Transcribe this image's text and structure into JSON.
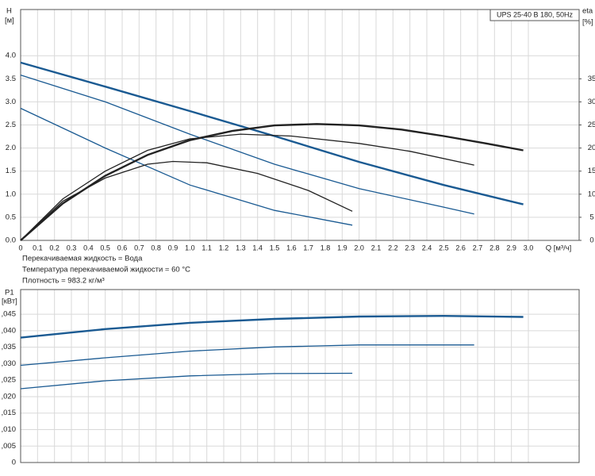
{
  "chart_data": [
    {
      "type": "line",
      "title": "UPS 25-40 B 180, 50Hz",
      "y_label": "H",
      "y_unit": "[м]",
      "y2_label": "eta",
      "y2_unit": "[%]",
      "x_label": "Q [м³/ч]",
      "annotations": [
        "Перекачиваемая жидкость = Вода",
        "Температура перекачиваемой жидкости = 60 °C",
        "Плотность = 983.2 кг/м³"
      ],
      "grid": true,
      "xlim": [
        0,
        3.3
      ],
      "xticks": [
        0,
        0.1,
        0.2,
        0.3,
        0.4,
        0.5,
        0.6,
        0.7,
        0.8,
        0.9,
        {
          "value": 1,
          "label": "1.0"
        },
        1.1,
        1.2,
        1.3,
        1.4,
        1.5,
        1.6,
        1.7,
        1.8,
        1.9,
        {
          "value": 2,
          "label": "2.0"
        },
        2.1,
        2.2,
        2.3,
        2.4,
        2.5,
        2.6,
        2.7,
        2.8,
        2.9,
        {
          "value": 3,
          "label": "3.0"
        }
      ],
      "ylim": [
        0,
        5
      ],
      "yticks": [
        {
          "value": 0,
          "label": "0.0"
        },
        0.5,
        {
          "value": 1,
          "label": "1.0"
        },
        1.5,
        {
          "value": 2,
          "label": "2.0"
        },
        2.5,
        {
          "value": 3,
          "label": "3.0"
        },
        3.5,
        {
          "value": 4,
          "label": "4.0"
        }
      ],
      "y2lim": [
        0,
        50
      ],
      "y2ticks": [
        0,
        5,
        10,
        15,
        20,
        25,
        30,
        35
      ],
      "series": [
        {
          "color": "#1a5a92",
          "axis": "y",
          "x": [
            0,
            0.5,
            1.0,
            1.5,
            2.0,
            2.5,
            2.97
          ],
          "values": [
            3.85,
            3.33,
            2.8,
            2.26,
            1.7,
            1.2,
            0.78
          ]
        },
        {
          "color": "#1a5a92",
          "axis": "y",
          "x": [
            0,
            0.5,
            1.0,
            1.5,
            2.0,
            2.5,
            2.68
          ],
          "values": [
            3.58,
            3.0,
            2.3,
            1.65,
            1.12,
            0.72,
            0.57
          ]
        },
        {
          "color": "#1a5a92",
          "axis": "y",
          "x": [
            0,
            0.5,
            1.0,
            1.5,
            1.96
          ],
          "values": [
            2.86,
            2.0,
            1.2,
            0.65,
            0.33
          ]
        },
        {
          "color": "#222222",
          "axis": "y2",
          "x": [
            0,
            0.25,
            0.5,
            0.75,
            1.0,
            1.25,
            1.5,
            1.75,
            2.0,
            2.25,
            2.5,
            2.75,
            2.97
          ],
          "values": [
            0,
            8,
            14,
            18.5,
            21.7,
            23.7,
            24.9,
            25.2,
            24.9,
            24.0,
            22.6,
            21.0,
            19.5
          ]
        },
        {
          "color": "#222222",
          "axis": "y2",
          "x": [
            0,
            0.25,
            0.5,
            0.75,
            1.0,
            1.3,
            1.6,
            2.0,
            2.3,
            2.68
          ],
          "values": [
            0,
            9,
            15,
            19.5,
            22,
            23,
            22.6,
            21,
            19.3,
            16.3
          ]
        },
        {
          "color": "#222222",
          "axis": "y2",
          "x": [
            0,
            0.25,
            0.5,
            0.75,
            0.9,
            1.1,
            1.4,
            1.7,
            1.96
          ],
          "values": [
            0,
            8.5,
            13.5,
            16.5,
            17.1,
            16.8,
            14.5,
            10.8,
            6.3
          ]
        }
      ]
    },
    {
      "type": "line",
      "y_label": "P1",
      "y_unit": "[кВт]",
      "grid": true,
      "xlim": [
        0,
        3.3
      ],
      "ylim": [
        0,
        0.0525
      ],
      "yticks": [
        0,
        {
          "value": 0.005,
          "label": ",005"
        },
        {
          "value": 0.01,
          "label": ",010"
        },
        {
          "value": 0.015,
          "label": ",015"
        },
        {
          "value": 0.02,
          "label": ",020"
        },
        {
          "value": 0.025,
          "label": ",025"
        },
        {
          "value": 0.03,
          "label": ",030"
        },
        {
          "value": 0.035,
          "label": ",035"
        },
        {
          "value": 0.04,
          "label": ",040"
        },
        {
          "value": 0.045,
          "label": ",045"
        }
      ],
      "series": [
        {
          "color": "#1a5a92",
          "x": [
            0,
            0.5,
            1.0,
            1.5,
            2.0,
            2.5,
            2.97
          ],
          "values": [
            0.0379,
            0.0405,
            0.0424,
            0.0436,
            0.0443,
            0.0445,
            0.0442
          ]
        },
        {
          "color": "#1a5a92",
          "x": [
            0,
            0.5,
            1.0,
            1.5,
            2.0,
            2.68
          ],
          "values": [
            0.0295,
            0.0318,
            0.0338,
            0.0351,
            0.0357,
            0.0357
          ]
        },
        {
          "color": "#1a5a92",
          "x": [
            0,
            0.5,
            1.0,
            1.5,
            1.96
          ],
          "values": [
            0.0224,
            0.0248,
            0.0263,
            0.027,
            0.0271
          ]
        }
      ]
    }
  ]
}
